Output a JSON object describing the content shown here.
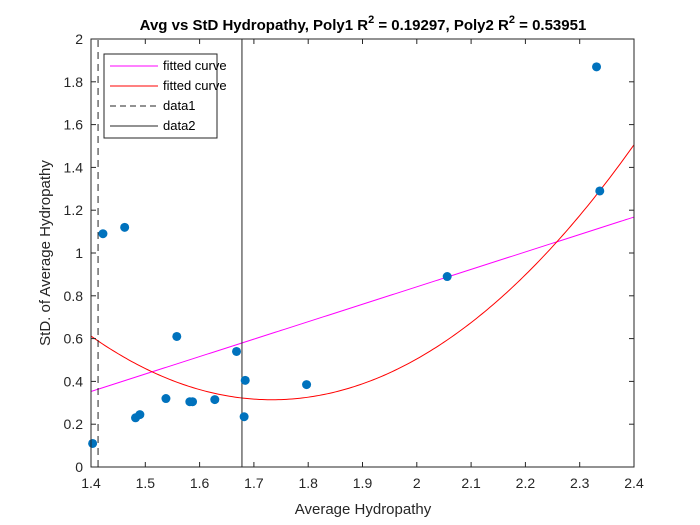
{
  "chart_data": {
    "type": "scatter",
    "title": {
      "main": "Avg vs StD Hydropathy, Poly1 R",
      "sup1": "2",
      "mid": " = 0.19297, Poly2 R",
      "sup2": "2",
      "end": " = 0.53951"
    },
    "xlabel": "Average Hydropathy",
    "ylabel": "StD. of Average Hydropathy",
    "xlim": [
      1.4,
      2.4
    ],
    "ylim": [
      0,
      2
    ],
    "xticks": [
      "1.4",
      "1.5",
      "1.6",
      "1.7",
      "1.8",
      "1.9",
      "2",
      "2.1",
      "2.2",
      "2.3",
      "2.4"
    ],
    "yticks": [
      "0",
      "0.2",
      "0.4",
      "0.6",
      "0.8",
      "1",
      "1.2",
      "1.4",
      "1.6",
      "1.8",
      "2"
    ],
    "grid": false,
    "legend_position": "top-left",
    "points": {
      "color": "#0072BD",
      "x": [
        1.403,
        1.422,
        1.462,
        1.482,
        1.49,
        1.538,
        1.558,
        1.582,
        1.587,
        1.628,
        1.668,
        1.682,
        1.684,
        1.797,
        2.056,
        2.331,
        2.337
      ],
      "y": [
        0.11,
        1.09,
        1.12,
        0.23,
        0.245,
        0.32,
        0.61,
        0.305,
        0.305,
        0.315,
        0.54,
        0.235,
        0.405,
        0.385,
        0.89,
        1.87,
        1.29
      ]
    },
    "series": [
      {
        "name": "fitted curve",
        "kind": "poly1",
        "color": "#FF00FF",
        "coeffs": [
          0.815,
          -0.788
        ]
      },
      {
        "name": "fitted curve",
        "kind": "poly2",
        "color": "#FF0000",
        "coeffs": [
          2.68,
          -9.29,
          8.365
        ]
      },
      {
        "name": "data1",
        "kind": "vline",
        "color": "#262626",
        "dash": true,
        "x": 1.413
      },
      {
        "name": "data2",
        "kind": "vline",
        "color": "#262626",
        "dash": false,
        "x": 1.678
      }
    ]
  }
}
